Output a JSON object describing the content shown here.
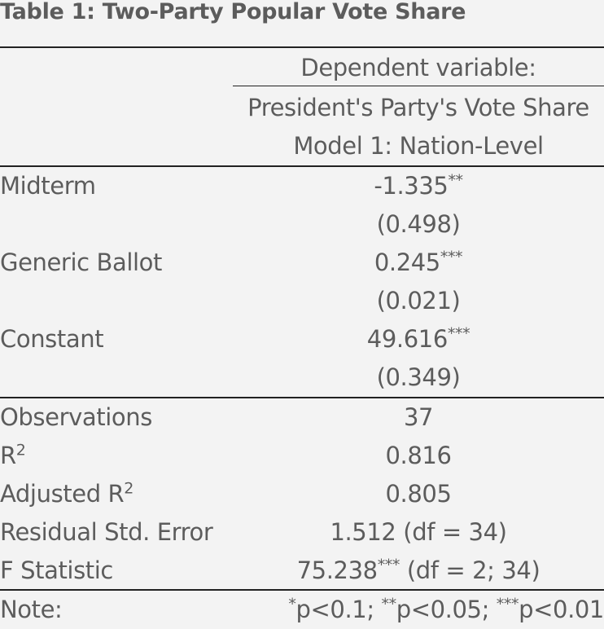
{
  "title": "Table 1: Two-Party Popular Vote Share",
  "header": {
    "dependent_label": "Dependent variable:",
    "dependent_var": "President's Party's Vote Share",
    "model": "Model 1: Nation-Level"
  },
  "coefficients": [
    {
      "label": "Midterm",
      "estimate": "-1.335",
      "stars": "**",
      "se": "(0.498)"
    },
    {
      "label": "Generic Ballot",
      "estimate": "0.245",
      "stars": "***",
      "se": "(0.021)"
    },
    {
      "label": "Constant",
      "estimate": "49.616",
      "stars": "***",
      "se": "(0.349)"
    }
  ],
  "stats": {
    "observations": {
      "label": "Observations",
      "value": "37"
    },
    "r2": {
      "label": "R",
      "sup": "2",
      "value": "0.816"
    },
    "adj_r2": {
      "label": "Adjusted R",
      "sup": "2",
      "value": "0.805"
    },
    "rse": {
      "label": "Residual Std. Error",
      "value": "1.512 (df = 34)"
    },
    "fstat": {
      "label": "F Statistic",
      "value": "75.238",
      "stars": "***",
      "suffix": " (df = 2; 34)"
    }
  },
  "note": {
    "label": "Note:",
    "s1": "*",
    "t1": "p<0.1; ",
    "s2": "**",
    "t2": "p<0.05; ",
    "s3": "***",
    "t3": "p<0.01"
  }
}
